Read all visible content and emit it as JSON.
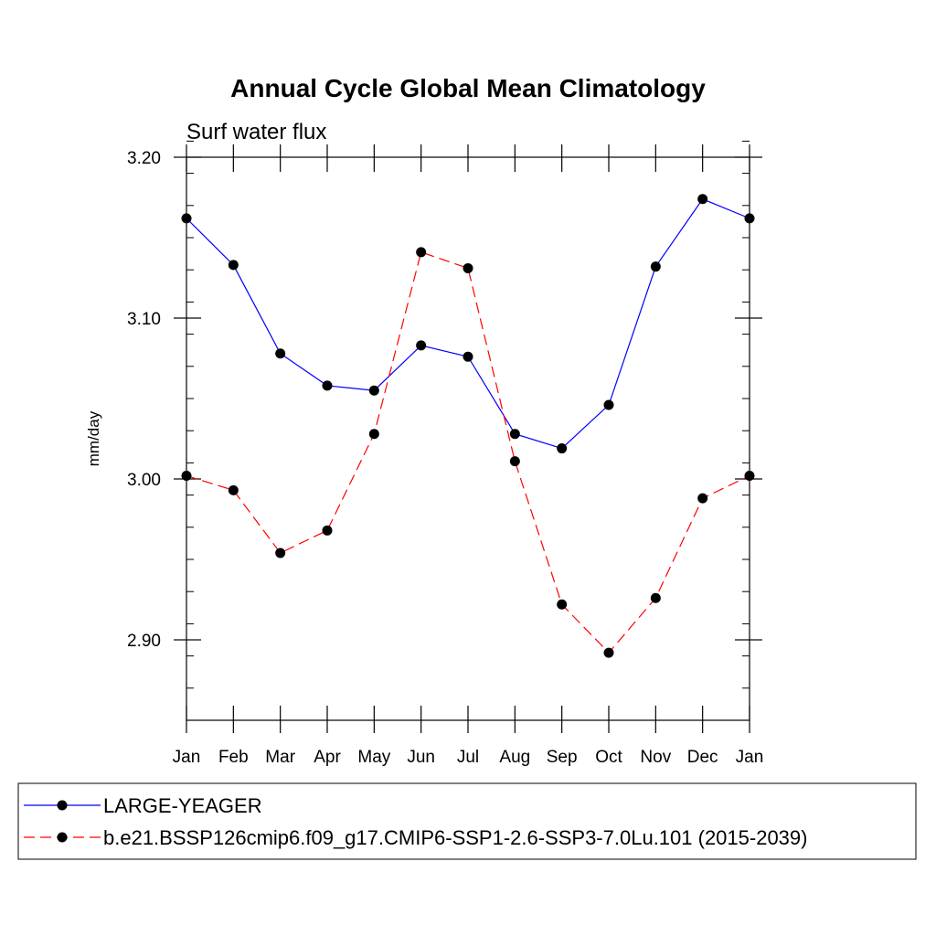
{
  "chart_data": {
    "type": "line",
    "title": "Annual Cycle Global Mean Climatology",
    "subtitle": "Surf water flux",
    "xlabel": "",
    "ylabel": "mm/day",
    "categories": [
      "Jan",
      "Feb",
      "Mar",
      "Apr",
      "May",
      "Jun",
      "Jul",
      "Aug",
      "Sep",
      "Oct",
      "Nov",
      "Dec",
      "Jan"
    ],
    "ylim": [
      2.85,
      3.2
    ],
    "yticks": [
      2.9,
      3.0,
      3.1,
      3.2
    ],
    "ytick_labels": [
      "2.90",
      "3.00",
      "3.10",
      "3.20"
    ],
    "minor_step": 0.02,
    "legend_position": "bottom",
    "series": [
      {
        "name": "LARGE-YEAGER",
        "color": "#0000ff",
        "dash": "solid",
        "values": [
          3.162,
          3.133,
          3.078,
          3.058,
          3.055,
          3.083,
          3.076,
          3.028,
          3.019,
          3.046,
          3.132,
          3.174,
          3.162
        ]
      },
      {
        "name": "b.e21.BSSP126cmip6.f09_g17.CMIP6-SSP1-2.6-SSP3-7.0Lu.101 (2015-2039)",
        "color": "#ff0000",
        "dash": "dashed",
        "values": [
          3.002,
          2.993,
          2.954,
          2.968,
          3.028,
          3.141,
          3.131,
          3.011,
          2.922,
          2.892,
          2.926,
          2.988,
          3.002
        ]
      }
    ]
  }
}
